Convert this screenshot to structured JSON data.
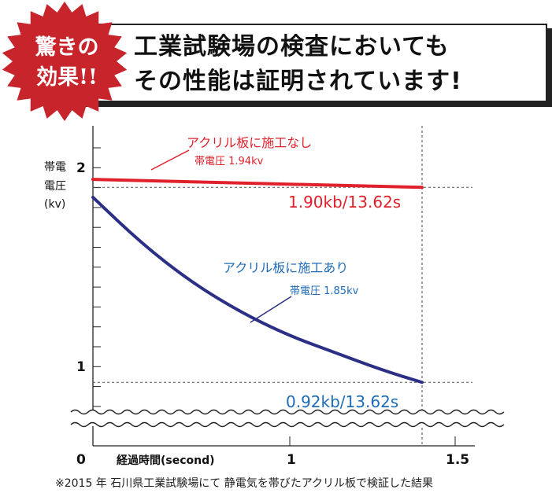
{
  "badge": {
    "line1": "驚きの",
    "line2": "効果!!",
    "color": "#c8242b"
  },
  "headline": {
    "line1": "工業試験場の検査においても",
    "line2": "その性能は証明されています!"
  },
  "footnote": "※2015 年 石川県工業試験場にて 静電気を帯びたアクリル板で検証した結果",
  "chart_data": {
    "type": "line",
    "ylabel": [
      "帯電",
      "電圧",
      "(kv)"
    ],
    "xlabel": "経過時間(second)",
    "x_ticks": [
      "0",
      "1",
      "1.5"
    ],
    "y_ticks": [
      "2",
      "1"
    ],
    "axis_break": true,
    "series": [
      {
        "name": "アクリル板に施工なし",
        "sub_label": "帯電圧 1.94kv",
        "color": "#e0202a",
        "end_label": "1.90kb/13.62s",
        "points": [
          [
            0,
            1.94
          ],
          [
            13.62,
            1.9
          ]
        ]
      },
      {
        "name": "アクリル板に施工あり",
        "sub_label": "帯電圧 1.85kv",
        "color": "#2b2f86",
        "label_color": "#1e6bb8",
        "end_label": "0.92kb/13.62s",
        "points": [
          [
            0,
            1.85
          ],
          [
            2,
            1.62
          ],
          [
            4,
            1.43
          ],
          [
            6,
            1.28
          ],
          [
            8,
            1.16
          ],
          [
            10,
            1.07
          ],
          [
            12,
            0.98
          ],
          [
            13.62,
            0.92
          ]
        ]
      }
    ]
  }
}
